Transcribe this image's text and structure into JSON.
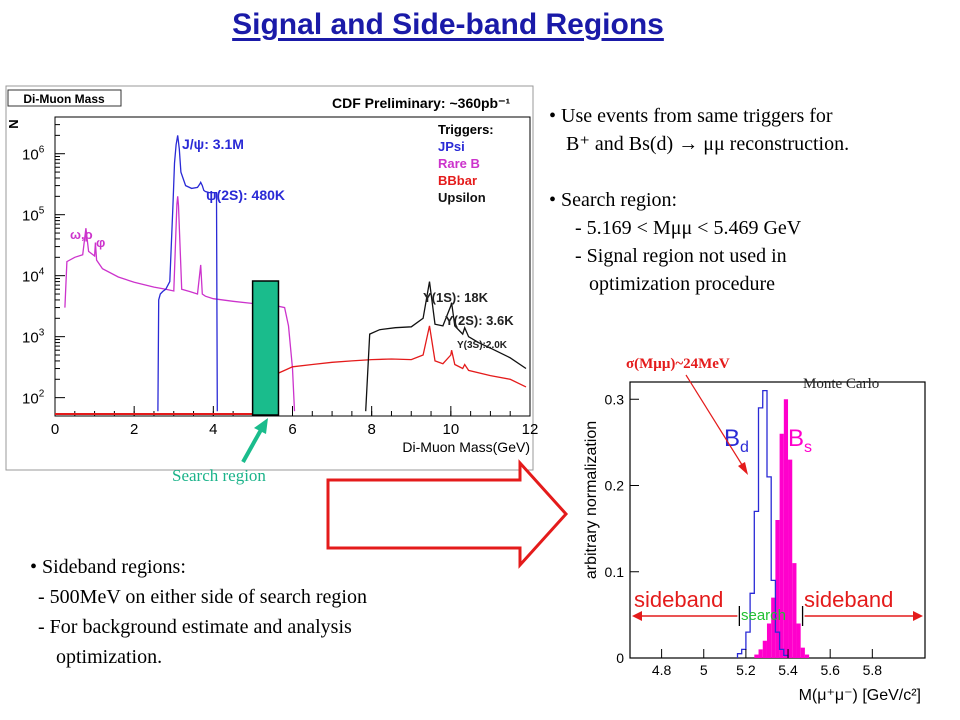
{
  "title": "Signal and Side-band Regions",
  "bullets_top": [
    "• Use events from same triggers for",
    "B⁺ and Bs(d) → μμ reconstruction.",
    "",
    "• Search region:",
    "- 5.169 < Mμμ < 5.469 GeV",
    "- Signal region not used in",
    "optimization procedure"
  ],
  "bullets_bottom": [
    "• Sideband regions:",
    "- 500MeV on either side of search region",
    "- For background estimate and analysis",
    "optimization."
  ],
  "annotations": {
    "search_region": "Search region",
    "sigma": "σ(Mμμ)~24MeV",
    "monte_carlo": "Monte Carlo"
  },
  "colors": {
    "title": "#1a1aa8",
    "jpsi": "#2a2ad6",
    "rareb": "#cc33cc",
    "bbbar": "#e41b1b",
    "upsilon": "#111111",
    "search_box": "#1abc8c",
    "bs": "#ff00cc",
    "arrow": "#e41b1b"
  },
  "chart_data": [
    {
      "type": "line",
      "title": "Di-Muon Mass",
      "subtitle": "CDF Preliminary: ~360pb⁻¹",
      "xlabel": "Di-Muon Mass(GeV)",
      "ylabel": "N",
      "xlim": [
        0,
        12
      ],
      "ylim": [
        50,
        4000000
      ],
      "yscale": "log",
      "xticks": [
        "0",
        "2",
        "4",
        "6",
        "8",
        "10",
        "12"
      ],
      "yticks": [
        {
          "base": "10",
          "exp": "2",
          "value": 100
        },
        {
          "base": "10",
          "exp": "3",
          "value": 1000
        },
        {
          "base": "10",
          "exp": "4",
          "value": 10000
        },
        {
          "base": "10",
          "exp": "5",
          "value": 100000
        },
        {
          "base": "10",
          "exp": "6",
          "value": 1000000
        }
      ],
      "legend": {
        "title": "Triggers:",
        "items": [
          "JPsi",
          "Rare B",
          "BBbar",
          "Upsilon"
        ],
        "placement": "top-right"
      },
      "peak_labels": {
        "omega_rho": "ω,ρ",
        "phi": "φ",
        "jpsi": "J/ψ: 3.1M",
        "psi2s": "ψ(2S): 480K",
        "y1s": "Υ(1S): 18K",
        "y2s": "Υ(2S): 3.6K",
        "y3s": "Υ(3S):2.0K"
      },
      "search_region": [
        5.169,
        5.469
      ],
      "series": [
        {
          "name": "JPsi",
          "x": [
            2.6,
            2.62,
            2.66,
            2.72,
            2.8,
            2.9,
            2.98,
            3.02,
            3.06,
            3.1,
            3.14,
            3.18,
            3.3,
            3.45,
            3.6,
            3.66,
            3.68,
            3.72,
            3.76,
            3.8,
            3.9,
            4.0,
            4.08,
            4.1
          ],
          "y": [
            60,
            4000,
            5000,
            5500,
            6000,
            8000,
            150000,
            700000,
            1400000,
            2000000,
            1200000,
            500000,
            300000,
            270000,
            280000,
            320000,
            340000,
            300000,
            250000,
            240000,
            230000,
            230000,
            230000,
            60
          ]
        },
        {
          "name": "Rare B",
          "x": [
            0.25,
            0.3,
            0.5,
            0.7,
            0.78,
            0.85,
            1.0,
            1.02,
            1.05,
            1.2,
            1.6,
            2.0,
            2.5,
            2.8,
            3.0,
            3.08,
            3.1,
            3.12,
            3.2,
            3.4,
            3.6,
            3.68,
            3.72,
            3.8,
            4.0,
            4.5,
            5.0,
            5.5,
            5.8,
            5.9,
            6.0,
            6.05
          ],
          "y": [
            3000,
            17000,
            20000,
            22000,
            60000,
            25000,
            21000,
            35000,
            18000,
            13000,
            9500,
            7800,
            6500,
            6000,
            5600,
            150000,
            200000,
            140000,
            6000,
            5500,
            5000,
            15000,
            5000,
            4600,
            4200,
            3800,
            3500,
            3300,
            3000,
            1500,
            300,
            60
          ]
        },
        {
          "name": "BBbar",
          "x": [
            5.0,
            5.2,
            5.5,
            5.8,
            6.0,
            6.5,
            7.0,
            7.5,
            8.0,
            8.5,
            9.0,
            9.3,
            9.46,
            9.6,
            9.8,
            10.0,
            10.02,
            10.1,
            10.3,
            10.35,
            10.45,
            11.0,
            11.5,
            11.9
          ],
          "y": [
            60,
            170,
            230,
            280,
            320,
            350,
            380,
            400,
            420,
            430,
            420,
            500,
            1500,
            400,
            360,
            500,
            600,
            350,
            300,
            350,
            280,
            230,
            200,
            150
          ]
        },
        {
          "name": "Upsilon",
          "x": [
            7.85,
            7.95,
            8.2,
            8.6,
            9.0,
            9.3,
            9.46,
            9.6,
            9.8,
            10.0,
            10.02,
            10.1,
            10.3,
            10.35,
            10.45,
            10.7,
            11.0,
            11.5,
            11.9
          ],
          "y": [
            60,
            1100,
            1300,
            1400,
            1450,
            2000,
            8000,
            1600,
            1500,
            3200,
            3600,
            1500,
            1100,
            1400,
            1000,
            800,
            650,
            450,
            300
          ]
        }
      ]
    },
    {
      "type": "bar",
      "xlabel": "M(μ⁺μ⁻)  [GeV/c²]",
      "ylabel": "arbitrary normalization",
      "xlim": [
        4.65,
        6.05
      ],
      "ylim": [
        0,
        0.32
      ],
      "xticks": [
        "4.8",
        "5",
        "5.2",
        "5.4",
        "5.6",
        "5.8"
      ],
      "yticks": [
        "0",
        "0.1",
        "0.2",
        "0.3"
      ],
      "labels": {
        "bd_main": "B",
        "bd_sub": "d",
        "bs_main": "B",
        "bs_sub": "s",
        "sideband_left": "sideband",
        "search": "search",
        "sideband_right": "sideband"
      },
      "search_window": [
        5.169,
        5.469
      ],
      "bin_width": 0.02,
      "series": [
        {
          "name": "Bd",
          "x": [
            5.17,
            5.19,
            5.21,
            5.23,
            5.25,
            5.27,
            5.29,
            5.31,
            5.33,
            5.35,
            5.37,
            5.39
          ],
          "y": [
            0.005,
            0.01,
            0.03,
            0.075,
            0.17,
            0.29,
            0.31,
            0.21,
            0.09,
            0.03,
            0.01,
            0.003
          ]
        },
        {
          "name": "Bs",
          "x": [
            5.25,
            5.27,
            5.29,
            5.31,
            5.33,
            5.35,
            5.37,
            5.39,
            5.41,
            5.43,
            5.45,
            5.47,
            5.49
          ],
          "y": [
            0.004,
            0.01,
            0.02,
            0.04,
            0.07,
            0.16,
            0.26,
            0.3,
            0.23,
            0.11,
            0.04,
            0.012,
            0.004
          ]
        }
      ]
    }
  ]
}
